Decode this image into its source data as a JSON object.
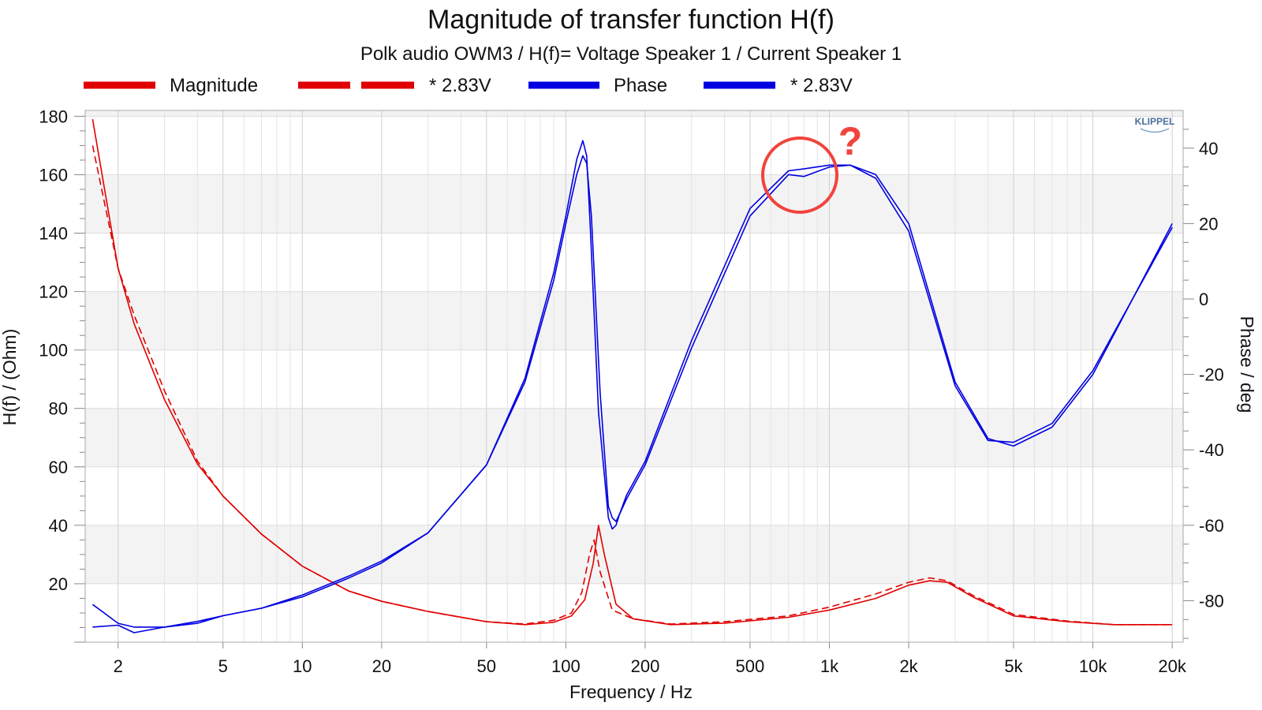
{
  "chart_data": {
    "type": "line",
    "title": "Magnitude of transfer function H(f)",
    "subtitle": "Polk audio OWM3 / H(f)= Voltage Speaker 1 / Current Speaker 1",
    "xlabel": "Frequency / Hz",
    "ylabel": "H(f) / (Ohm)",
    "ylabel_right": "Phase / deg",
    "x_scale": "log",
    "xlim": [
      1.5,
      22000
    ],
    "ylim": [
      0,
      182
    ],
    "ylim_right": [
      -91,
      50
    ],
    "x_ticks": [
      2,
      5,
      10,
      20,
      50,
      100,
      200,
      500,
      1000,
      2000,
      5000,
      10000,
      20000
    ],
    "x_tick_labels": [
      "2",
      "5",
      "10",
      "20",
      "50",
      "100",
      "200",
      "500",
      "1k",
      "2k",
      "5k",
      "10k",
      "20k"
    ],
    "y_ticks": [
      20,
      40,
      60,
      80,
      100,
      120,
      140,
      160,
      180
    ],
    "y_ticks_right": [
      -80,
      -60,
      -40,
      -20,
      0,
      20,
      40
    ],
    "grid": true,
    "legend_position": "top",
    "logo": "KLIPPEL",
    "annotations": [
      {
        "text": "?",
        "near_x": 780,
        "near_phase": 33
      }
    ],
    "series": [
      {
        "name": "Magnitude",
        "axis": "left",
        "color": "#e00000",
        "dash": "solid",
        "x": [
          1.6,
          2,
          2.3,
          3,
          4,
          5,
          7,
          10,
          15,
          20,
          30,
          50,
          70,
          90,
          105,
          118,
          127,
          133,
          140,
          155,
          180,
          250,
          400,
          700,
          1000,
          1500,
          2000,
          2400,
          2800,
          3500,
          5000,
          8000,
          12000,
          20000
        ],
        "y": [
          179,
          128,
          109,
          83,
          61,
          50,
          37,
          26,
          17.5,
          14,
          10.5,
          7,
          6,
          6.8,
          9,
          14.5,
          27,
          40,
          30,
          13,
          8,
          6,
          6.5,
          8.5,
          11,
          15,
          19.5,
          21,
          20.5,
          15.5,
          9,
          7,
          6,
          6
        ]
      },
      {
        "name": "* 2.83V",
        "axis": "left",
        "color": "#e00000",
        "dash": "dashed",
        "x": [
          1.6,
          2,
          2.3,
          3,
          4,
          5,
          7,
          10,
          15,
          20,
          30,
          50,
          70,
          90,
          105,
          115,
          123,
          128,
          135,
          150,
          180,
          250,
          400,
          700,
          1000,
          1500,
          2000,
          2400,
          2800,
          3500,
          5000,
          8000,
          12000,
          20000
        ],
        "y": [
          170,
          128,
          112,
          86,
          62,
          50,
          37,
          26,
          17.5,
          14,
          10.5,
          7,
          6.2,
          7.5,
          10,
          17,
          30,
          35,
          24,
          11,
          8,
          6.2,
          7,
          9,
          12,
          16.5,
          20.5,
          22,
          21,
          16,
          9.5,
          7.2,
          6,
          6
        ]
      },
      {
        "name": "Phase",
        "axis": "right",
        "color": "#0000e0",
        "dash": "solid",
        "x": [
          1.6,
          2,
          2.3,
          3,
          4,
          5,
          7,
          10,
          15,
          20,
          30,
          50,
          70,
          90,
          100,
          110,
          116,
          120,
          125,
          135,
          145,
          150,
          155,
          160,
          170,
          200,
          300,
          500,
          700,
          800,
          1000,
          1200,
          1500,
          2000,
          3000,
          4000,
          5000,
          7000,
          10000,
          20000
        ],
        "y": [
          -87,
          -86.5,
          -88.5,
          -87,
          -86,
          -84,
          -82,
          -79,
          -74,
          -70,
          -62,
          -44,
          -22,
          5,
          20,
          33,
          38,
          36,
          22,
          -25,
          -55,
          -58,
          -59,
          -57,
          -53,
          -44,
          -13,
          22,
          33,
          32.5,
          35,
          35.5,
          33,
          20,
          -22,
          -37,
          -39,
          -34,
          -20,
          20
        ]
      },
      {
        "name": "* 2.83V",
        "axis": "right",
        "color": "#0000e0",
        "dash": "solid",
        "x": [
          1.6,
          2,
          2.3,
          3,
          4,
          5,
          7,
          10,
          15,
          20,
          30,
          50,
          70,
          90,
          100,
          110,
          116,
          120,
          124,
          133,
          145,
          150,
          155,
          160,
          170,
          200,
          300,
          500,
          700,
          800,
          1000,
          1200,
          1500,
          2000,
          3000,
          4000,
          5000,
          7000,
          10000,
          20000
        ],
        "y": [
          -81,
          -86,
          -87,
          -87,
          -85.5,
          -84,
          -82,
          -78.5,
          -73.5,
          -69.5,
          -62,
          -44,
          -21,
          7,
          22,
          37,
          42,
          38,
          18,
          -30,
          -58,
          -61,
          -60,
          -57,
          -52,
          -43,
          -11,
          24,
          34,
          34.5,
          35.5,
          35.5,
          32,
          18,
          -23,
          -37.5,
          -38,
          -33,
          -19,
          19
        ]
      }
    ]
  }
}
